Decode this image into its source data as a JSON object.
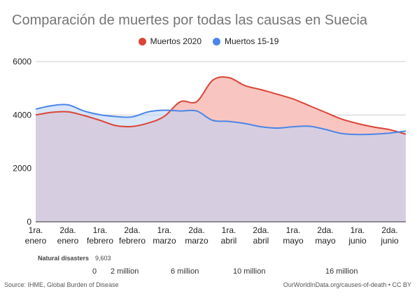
{
  "chart_data": {
    "type": "area",
    "title": "Comparación de muertes por todas las causas en Suecia",
    "xlabel": "",
    "ylabel": "",
    "ylim": [
      0,
      6000
    ],
    "yticks": [
      0,
      2000,
      4000,
      6000
    ],
    "grid": true,
    "legend_position": "top-center",
    "categories": [
      [
        "1ra.",
        "enero"
      ],
      [
        "2da.",
        "enero"
      ],
      [
        "1ra.",
        "febrero"
      ],
      [
        "2da.",
        "febrero"
      ],
      [
        "1ra.",
        "marzo"
      ],
      [
        "2da.",
        "marzo"
      ],
      [
        "1ra.",
        "abril"
      ],
      [
        "2da.",
        "abril"
      ],
      [
        "1ra.",
        "mayo"
      ],
      [
        "2da.",
        "mayo"
      ],
      [
        "1ra.",
        "junio"
      ],
      [
        "2da.",
        "junio"
      ]
    ],
    "x": [
      1,
      1.5,
      2,
      2.5,
      3,
      3.5,
      4,
      4.5,
      5,
      5.5,
      6,
      6.5,
      7,
      7.5,
      8,
      8.5,
      9,
      9.5,
      10,
      10.5,
      11,
      11.5,
      12,
      12.5
    ],
    "series": [
      {
        "name": "Muertos 2020",
        "color": "#db4437",
        "fill": "#f8c5c0",
        "values": [
          4000,
          4100,
          4120,
          3980,
          3800,
          3600,
          3570,
          3700,
          3950,
          4500,
          4500,
          5300,
          5400,
          5100,
          4950,
          4780,
          4600,
          4350,
          4100,
          3850,
          3680,
          3550,
          3450,
          3280
        ]
      },
      {
        "name": "Muertos 15-19",
        "color": "#4a86e8",
        "fill": "#bfd3f5",
        "values": [
          4220,
          4350,
          4380,
          4150,
          4010,
          3940,
          3930,
          4120,
          4180,
          4150,
          4150,
          3800,
          3760,
          3680,
          3560,
          3510,
          3560,
          3580,
          3460,
          3310,
          3270,
          3280,
          3320,
          3400
        ]
      }
    ]
  },
  "overlay": {
    "row_label": "Natural disasters",
    "row_value": "9,603",
    "axis_ticks": [
      "0",
      "2 million",
      "6 million",
      "10 million",
      "16 million"
    ]
  },
  "footer": {
    "source": "Source: IHME, Global Burden of Disease",
    "credit": "OurWorldInData.org/causes-of-death • CC BY"
  }
}
